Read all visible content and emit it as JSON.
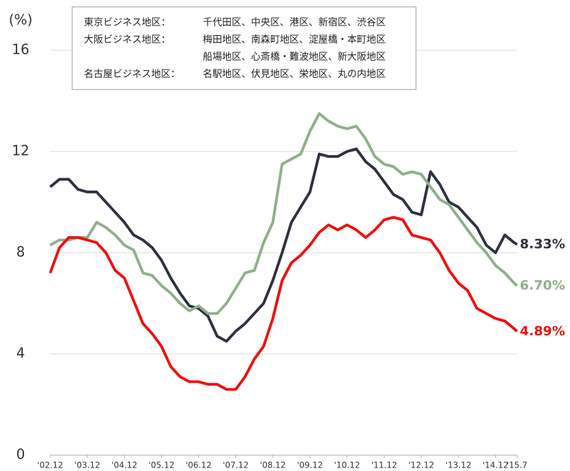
{
  "chart_data": {
    "type": "line",
    "y_label": "(%)",
    "note": [
      {
        "label": "東京ビジネス地区：",
        "areas": [
          "千代田区、中央区、港区、新宿区、渋谷区"
        ]
      },
      {
        "label": "大阪ビジネス地区：",
        "areas": [
          "梅田地区、南森町地区、淀屋橋・本町地区",
          "船場地区、心斎橋・難波地区、新大阪地区"
        ]
      },
      {
        "label": "名古屋ビジネス地区：",
        "areas": [
          "名駅地区、伏見地区、栄地区、丸の内地区"
        ]
      }
    ],
    "x": [
      2002.92,
      2003.17,
      2003.42,
      2003.67,
      2003.92,
      2004.17,
      2004.42,
      2004.67,
      2004.92,
      2005.17,
      2005.42,
      2005.67,
      2005.92,
      2006.17,
      2006.42,
      2006.67,
      2006.92,
      2007.17,
      2007.42,
      2007.67,
      2007.92,
      2008.17,
      2008.42,
      2008.67,
      2008.92,
      2009.17,
      2009.42,
      2009.67,
      2009.92,
      2010.17,
      2010.42,
      2010.67,
      2010.92,
      2011.17,
      2011.42,
      2011.67,
      2011.92,
      2012.17,
      2012.42,
      2012.67,
      2012.92,
      2013.17,
      2013.42,
      2013.67,
      2013.92,
      2014.17,
      2014.42,
      2014.67,
      2014.92,
      2015.17,
      2015.42,
      2015.5
    ],
    "series": [
      {
        "color": "#2e3140",
        "end_label": "8.33%",
        "values": [
          10.6,
          10.9,
          10.9,
          10.5,
          10.4,
          10.4,
          10.0,
          9.6,
          9.2,
          8.7,
          8.5,
          8.2,
          7.7,
          7.0,
          6.4,
          5.9,
          5.8,
          5.5,
          4.7,
          4.5,
          4.9,
          5.2,
          5.6,
          6.0,
          6.9,
          8.0,
          9.2,
          9.8,
          10.4,
          11.9,
          11.8,
          11.8,
          12.0,
          12.1,
          11.6,
          11.3,
          10.8,
          10.3,
          10.1,
          9.6,
          9.5,
          11.2,
          10.7,
          10.0,
          9.8,
          9.4,
          9.0,
          8.3,
          8.0,
          8.7,
          8.4,
          8.33
        ]
      },
      {
        "color": "#8fb08a",
        "end_label": "6.70%",
        "values": [
          8.3,
          8.5,
          8.5,
          8.6,
          8.6,
          9.2,
          9.0,
          8.7,
          8.3,
          8.1,
          7.2,
          7.1,
          6.7,
          6.4,
          6.0,
          5.7,
          5.9,
          5.6,
          5.6,
          6.0,
          6.6,
          7.2,
          7.3,
          8.4,
          9.2,
          11.5,
          11.7,
          11.9,
          12.8,
          13.5,
          13.2,
          13.0,
          12.9,
          13.0,
          12.5,
          11.8,
          11.5,
          11.4,
          11.1,
          11.2,
          11.1,
          10.6,
          10.1,
          9.9,
          9.4,
          8.9,
          8.4,
          8.0,
          7.5,
          7.2,
          6.8,
          6.7
        ]
      },
      {
        "color": "#f01010",
        "end_label": "4.89%",
        "values": [
          7.2,
          8.2,
          8.6,
          8.6,
          8.5,
          8.4,
          8.0,
          7.3,
          7.0,
          6.1,
          5.2,
          4.8,
          4.3,
          3.5,
          3.1,
          2.9,
          2.9,
          2.8,
          2.8,
          2.6,
          2.6,
          3.1,
          3.8,
          4.3,
          5.4,
          6.9,
          7.6,
          7.9,
          8.3,
          8.8,
          9.1,
          8.9,
          9.1,
          8.9,
          8.6,
          8.9,
          9.3,
          9.4,
          9.3,
          8.7,
          8.6,
          8.5,
          8.0,
          7.3,
          6.8,
          6.5,
          5.8,
          5.6,
          5.4,
          5.3,
          5.0,
          4.89
        ]
      }
    ],
    "xlim": [
      2002.92,
      2015.5
    ],
    "xticks": [
      {
        "value": 2002.92,
        "label": "'02.12"
      },
      {
        "value": 2003.92,
        "label": "'03.12"
      },
      {
        "value": 2004.92,
        "label": "'04.12"
      },
      {
        "value": 2005.92,
        "label": "'05.12"
      },
      {
        "value": 2006.92,
        "label": "'06.12"
      },
      {
        "value": 2007.92,
        "label": "'07.12"
      },
      {
        "value": 2008.92,
        "label": "'08.12"
      },
      {
        "value": 2009.92,
        "label": "'09.12"
      },
      {
        "value": 2010.92,
        "label": "'10.12"
      },
      {
        "value": 2011.92,
        "label": "'11.12"
      },
      {
        "value": 2012.92,
        "label": "'12.12"
      },
      {
        "value": 2013.92,
        "label": "'13.12"
      },
      {
        "value": 2014.92,
        "label": "'14.12"
      },
      {
        "value": 2015.5,
        "label": "'15.7"
      }
    ],
    "ylim": [
      0,
      16
    ],
    "yticks": [
      0,
      4,
      8,
      12,
      16
    ],
    "grid": true
  }
}
